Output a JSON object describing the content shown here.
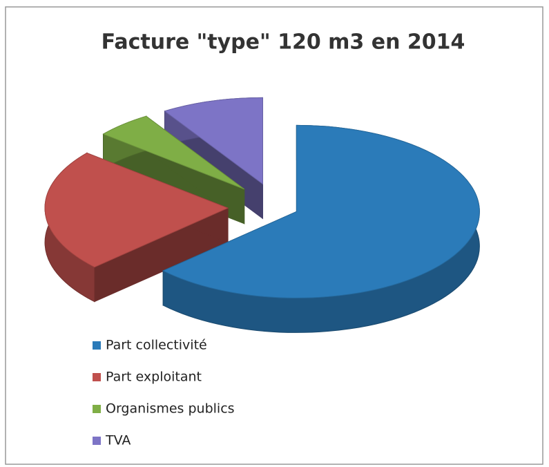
{
  "chart_data": {
    "type": "pie",
    "title": "Facture \"type\" 120 m3 en 2014",
    "categories": [
      "Part collectivité",
      "Part exploitant",
      "Organismes publics",
      "TVA"
    ],
    "values": [
      63,
      23,
      5,
      9
    ],
    "colors": [
      "#2b7bb9",
      "#c0504d",
      "#7fae46",
      "#7d74c6"
    ],
    "legend": "bottom-left"
  }
}
